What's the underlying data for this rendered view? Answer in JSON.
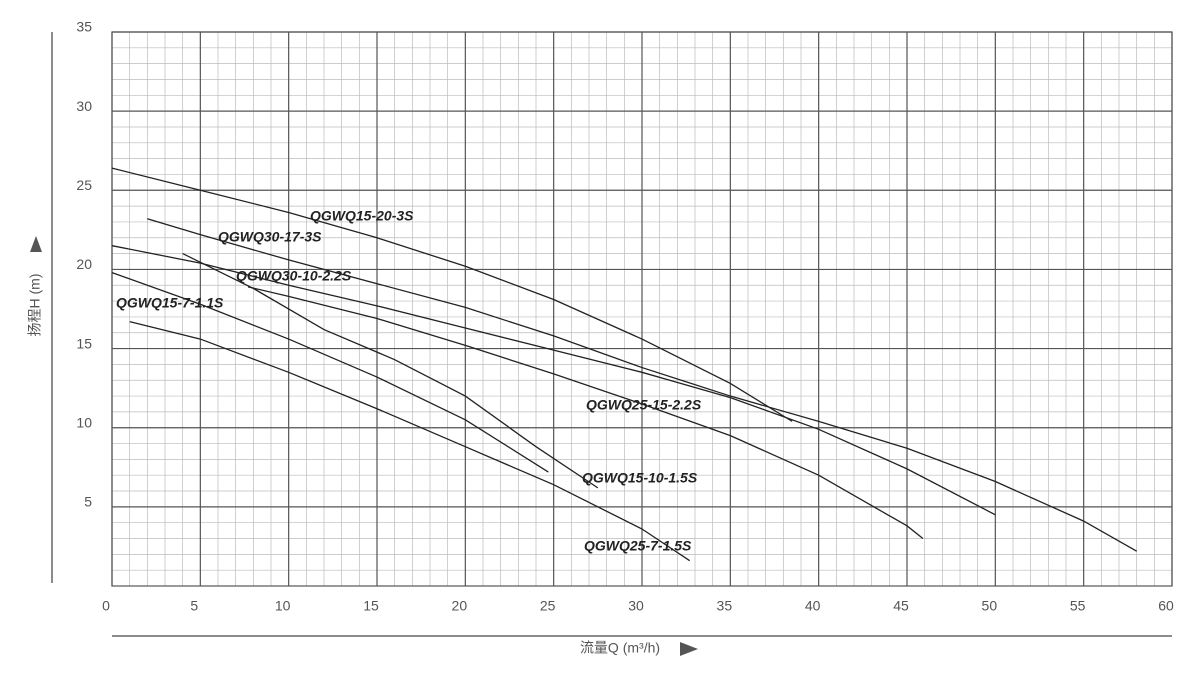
{
  "chart_data": {
    "type": "line",
    "x_label": "流量Q (m³/h)",
    "y_label": "扬程H (m)",
    "xlim": [
      0,
      60
    ],
    "ylim": [
      0,
      35
    ],
    "xticks": [
      0,
      5,
      10,
      15,
      20,
      25,
      30,
      35,
      40,
      45,
      50,
      55,
      60
    ],
    "yticks": [
      5,
      10,
      15,
      20,
      25,
      30,
      35
    ],
    "grid": true,
    "series": [
      {
        "name": "QGWQ15-20-3S",
        "color": "#222222",
        "x": [
          0,
          5,
          10,
          15,
          20,
          25,
          30,
          35,
          38.5
        ],
        "values": [
          26.4,
          25.0,
          23.6,
          22.0,
          20.2,
          18.1,
          15.6,
          12.8,
          10.4
        ]
      },
      {
        "name": "QGWQ30-17-3S",
        "color": "#222222",
        "x": [
          2,
          5,
          10,
          20,
          25,
          30,
          35,
          40,
          45,
          50,
          55,
          58
        ],
        "values": [
          23.2,
          22.2,
          20.6,
          17.6,
          15.8,
          13.8,
          12.0,
          10.4,
          8.7,
          6.6,
          4.1,
          2.2
        ]
      },
      {
        "name": "QGWQ30-10-2.2S",
        "color": "#222222",
        "x": [
          0,
          5,
          10,
          15,
          20,
          25,
          30,
          35,
          40,
          45,
          50
        ],
        "values": [
          21.5,
          20.4,
          19.0,
          17.7,
          16.3,
          14.9,
          13.5,
          11.9,
          9.9,
          7.4,
          4.5
        ]
      },
      {
        "name": "QGWQ15-7-1.1S",
        "color": "#222222",
        "x": [
          0,
          5,
          10,
          15,
          20,
          24.7
        ],
        "values": [
          19.8,
          17.8,
          15.6,
          13.2,
          10.5,
          7.2
        ]
      },
      {
        "name": "QGWQ25-15-2.2S",
        "color": "#222222",
        "x": [
          7.7,
          10,
          15,
          20,
          25,
          30,
          35,
          40,
          45,
          45.9
        ],
        "values": [
          18.9,
          18.3,
          16.9,
          15.2,
          13.4,
          11.5,
          9.5,
          7.0,
          3.8,
          3.0
        ]
      },
      {
        "name": "QGWQ15-10-1.5S",
        "color": "#222222",
        "x": [
          4,
          8,
          12,
          16,
          20,
          24,
          27.5
        ],
        "values": [
          21.0,
          18.8,
          16.2,
          14.3,
          12.0,
          8.8,
          6.2
        ]
      },
      {
        "name": "QGWQ25-7-1.5S",
        "color": "#222222",
        "x": [
          1,
          5,
          10,
          15,
          20,
          25,
          30,
          32.7
        ],
        "values": [
          16.7,
          15.6,
          13.5,
          11.2,
          8.8,
          6.4,
          3.6,
          1.6
        ]
      }
    ]
  }
}
